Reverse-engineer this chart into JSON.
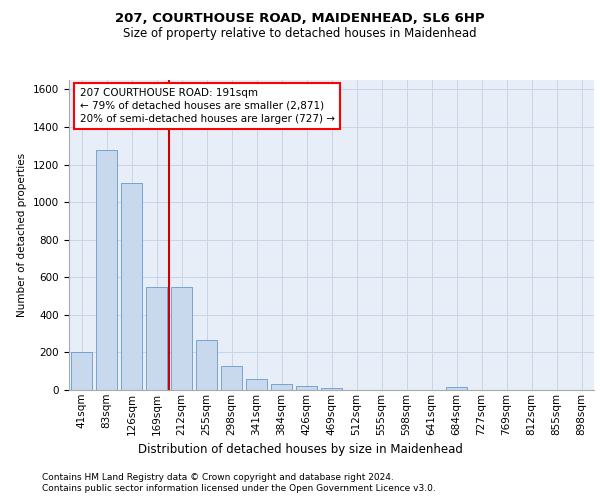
{
  "title1": "207, COURTHOUSE ROAD, MAIDENHEAD, SL6 6HP",
  "title2": "Size of property relative to detached houses in Maidenhead",
  "xlabel": "Distribution of detached houses by size in Maidenhead",
  "ylabel": "Number of detached properties",
  "footnote1": "Contains HM Land Registry data © Crown copyright and database right 2024.",
  "footnote2": "Contains public sector information licensed under the Open Government Licence v3.0.",
  "annotation_line1": "207 COURTHOUSE ROAD: 191sqm",
  "annotation_line2": "← 79% of detached houses are smaller (2,871)",
  "annotation_line3": "20% of semi-detached houses are larger (727) →",
  "bar_categories": [
    "41sqm",
    "83sqm",
    "126sqm",
    "169sqm",
    "212sqm",
    "255sqm",
    "298sqm",
    "341sqm",
    "384sqm",
    "426sqm",
    "469sqm",
    "512sqm",
    "555sqm",
    "598sqm",
    "641sqm",
    "684sqm",
    "727sqm",
    "769sqm",
    "812sqm",
    "855sqm",
    "898sqm"
  ],
  "bar_values": [
    200,
    1275,
    1100,
    550,
    550,
    265,
    130,
    60,
    30,
    20,
    13,
    0,
    0,
    0,
    0,
    15,
    0,
    0,
    0,
    0,
    0
  ],
  "bar_color": "#c8d9ee",
  "bar_edge_color": "#6699cc",
  "vline_color": "#cc0000",
  "grid_color": "#c8d4e8",
  "background_color": "#e8eef8",
  "ylim": [
    0,
    1650
  ],
  "yticks": [
    0,
    200,
    400,
    600,
    800,
    1000,
    1200,
    1400,
    1600
  ],
  "title1_fontsize": 9.5,
  "title2_fontsize": 8.5,
  "xlabel_fontsize": 8.5,
  "ylabel_fontsize": 7.5,
  "tick_fontsize": 7.5,
  "footnote_fontsize": 6.5,
  "annot_fontsize": 7.5
}
